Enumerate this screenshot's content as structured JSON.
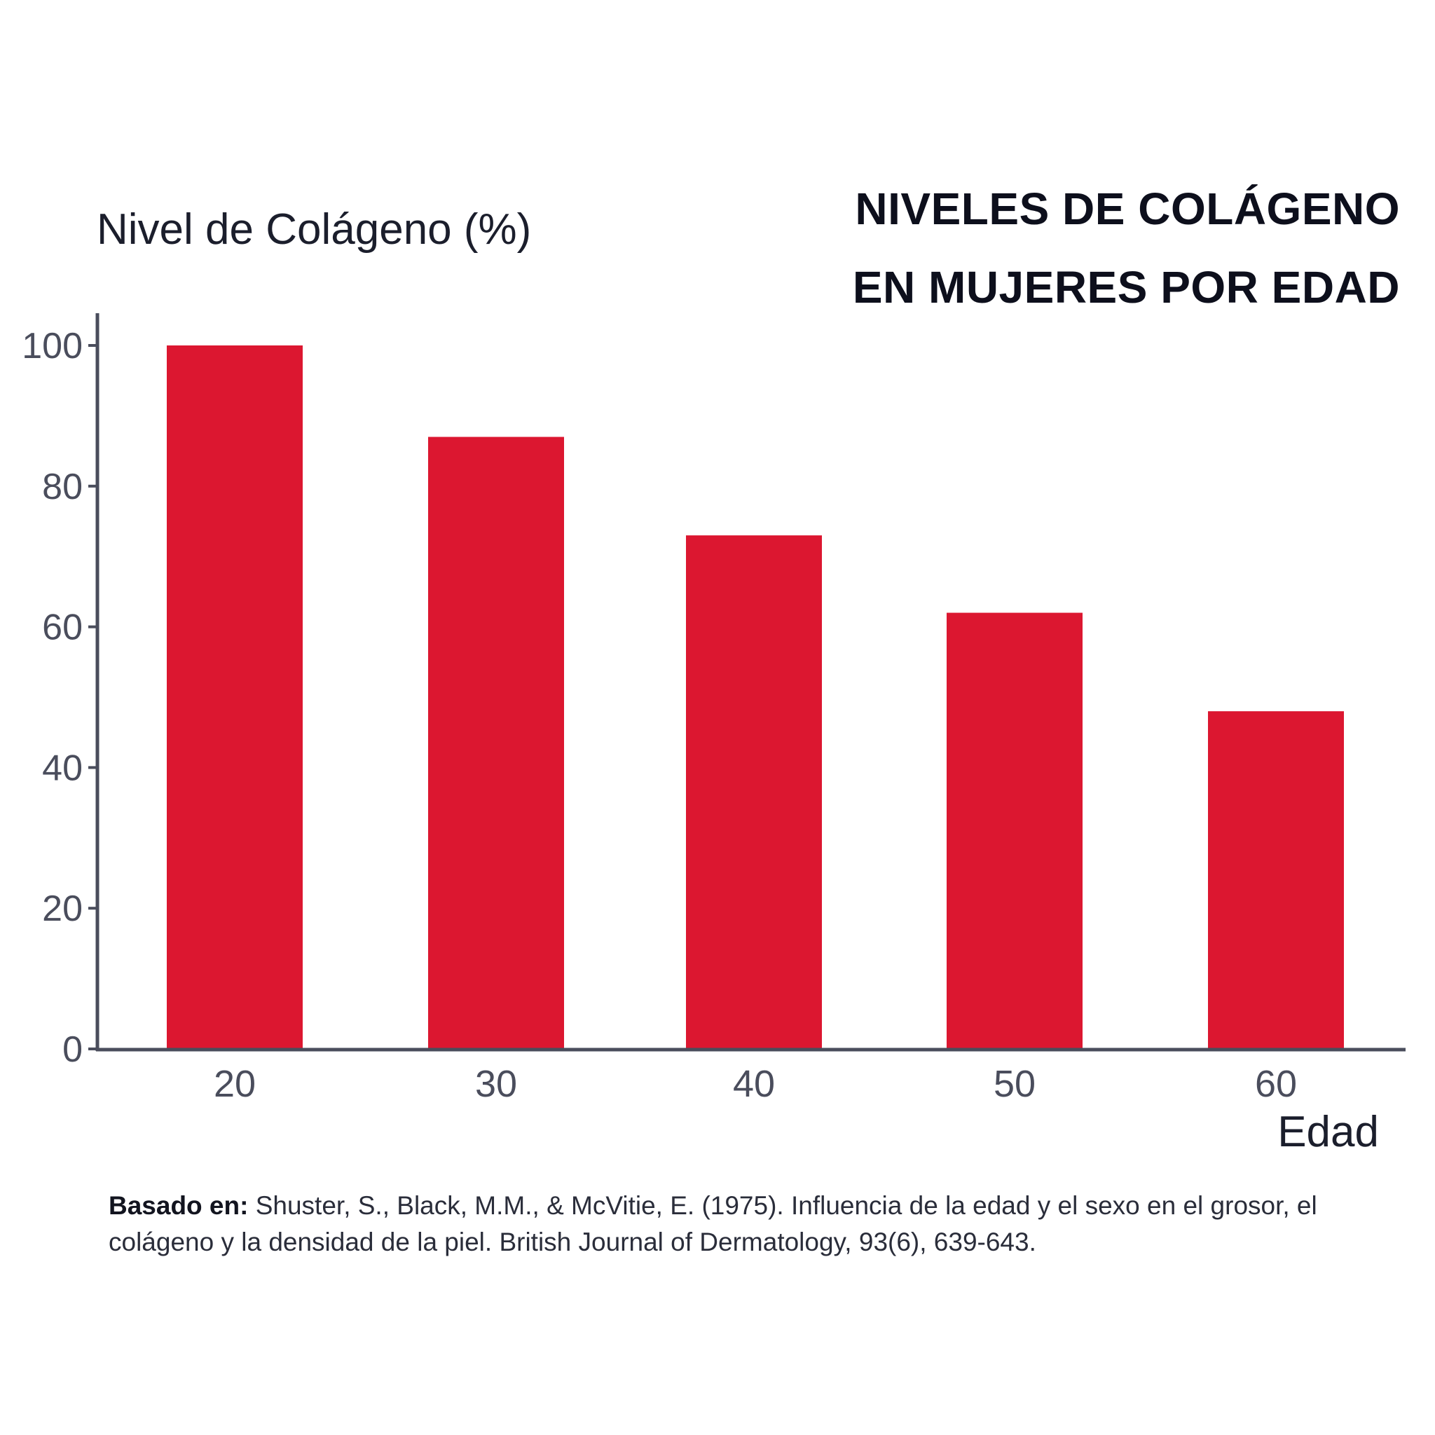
{
  "chart_data": {
    "type": "bar",
    "title": "NIVELES DE COLÁGENO EN MUJERES POR EDAD",
    "title_lines": [
      "NIVELES DE COLÁGENO",
      "EN MUJERES POR EDAD"
    ],
    "xlabel": "Edad",
    "ylabel": "Nivel de Colágeno (%)",
    "categories": [
      "20",
      "30",
      "40",
      "50",
      "60"
    ],
    "values": [
      100,
      87,
      73,
      62,
      48
    ],
    "ylim": [
      0,
      100
    ],
    "yticks": [
      0,
      20,
      40,
      60,
      80,
      100
    ],
    "grid": false,
    "legend": null,
    "bar_color": "#dc1730",
    "axis_color": "#4a4d5c"
  },
  "header": {
    "title_line1": "NIVELES DE COLÁGENO",
    "title_line2": "EN MUJERES POR EDAD"
  },
  "axes": {
    "y_label": "Nivel de Colágeno (%)",
    "x_label": "Edad"
  },
  "citation": {
    "prefix": "Basado en:",
    "text": " Shuster, S., Black, M.M., & McVitie, E. (1975). Influencia de la edad y el sexo en el grosor, el colágeno y la densidad de la piel. British Journal of Dermatology, 93(6), 639-643."
  }
}
